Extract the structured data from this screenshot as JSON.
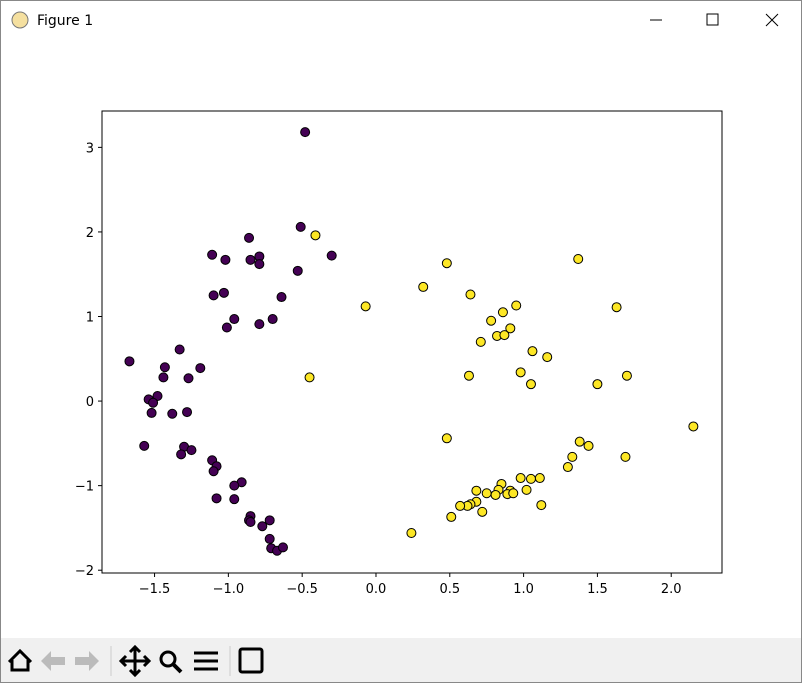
{
  "window_title": "Figure 1",
  "chart_data": {
    "type": "scatter",
    "xlim": [
      -1.856,
      2.344
    ],
    "ylim": [
      -2.033,
      3.43
    ],
    "xticks": [
      {
        "value": -1.5,
        "label": "−1.5"
      },
      {
        "value": -1.0,
        "label": "−1.0"
      },
      {
        "value": -0.5,
        "label": "−0.5"
      },
      {
        "value": 0,
        "label": "0.0"
      },
      0.5,
      {
        "value": 1.0,
        "label": "1.0"
      },
      1.5,
      {
        "value": 2.0,
        "label": "2.0"
      }
    ],
    "yticks": [
      {
        "value": -2,
        "label": "−2"
      },
      {
        "value": -1,
        "label": "−1"
      },
      0,
      1,
      2,
      3
    ],
    "grid": false,
    "series": [
      {
        "color": "#440154",
        "x": [
          -0.48,
          -0.51,
          -0.3,
          -0.86,
          -1.11,
          -1.02,
          -0.85,
          -0.79,
          -0.79,
          -0.53,
          -1.1,
          -1.03,
          -0.64,
          -0.96,
          -0.7,
          -1.01,
          -0.79,
          -1.67,
          -1.33,
          -1.43,
          -1.44,
          -1.19,
          -1.27,
          -1.48,
          -1.54,
          -1.51,
          -1.52,
          -1.38,
          -1.28,
          -1.57,
          -1.3,
          -1.25,
          -1.32,
          -1.11,
          -1.08,
          -1.1,
          -0.91,
          -0.96,
          -1.08,
          -0.96,
          -0.85,
          -0.86,
          -0.85,
          -0.72,
          -0.77,
          -0.72,
          -0.71,
          -0.67,
          -0.63
        ],
        "y": [
          3.18,
          2.06,
          1.72,
          1.93,
          1.73,
          1.67,
          1.67,
          1.71,
          1.62,
          1.54,
          1.25,
          1.28,
          1.23,
          0.97,
          0.97,
          0.87,
          0.91,
          0.47,
          0.61,
          0.4,
          0.28,
          0.39,
          0.27,
          0.06,
          0.02,
          -0.02,
          -0.14,
          -0.15,
          -0.13,
          -0.53,
          -0.54,
          -0.58,
          -0.63,
          -0.7,
          -0.77,
          -0.83,
          -0.96,
          -1.0,
          -1.15,
          -1.16,
          -1.36,
          -1.41,
          -1.43,
          -1.41,
          -1.48,
          -1.63,
          -1.74,
          -1.77,
          -1.73
        ]
      },
      {
        "color": "#fde725",
        "x": [
          -0.41,
          -0.07,
          0.48,
          0.32,
          0.64,
          1.37,
          1.63,
          0.95,
          0.86,
          0.78,
          0.91,
          0.82,
          0.87,
          0.71,
          1.06,
          1.16,
          -0.45,
          0.63,
          0.98,
          1.05,
          1.5,
          1.7,
          2.15,
          0.48,
          1.38,
          1.44,
          1.33,
          1.69,
          1.3,
          0.98,
          1.05,
          1.11,
          0.85,
          0.83,
          1.02,
          0.91,
          0.68,
          0.75,
          0.81,
          0.89,
          0.93,
          0.68,
          0.64,
          0.62,
          0.57,
          1.12,
          0.72,
          0.51,
          0.24
        ],
        "y": [
          1.96,
          1.12,
          1.63,
          1.35,
          1.26,
          1.68,
          1.11,
          1.13,
          1.05,
          0.95,
          0.86,
          0.77,
          0.78,
          0.7,
          0.59,
          0.52,
          0.28,
          0.3,
          0.34,
          0.2,
          0.2,
          0.3,
          -0.3,
          -0.44,
          -0.48,
          -0.53,
          -0.66,
          -0.66,
          -0.78,
          -0.91,
          -0.92,
          -0.91,
          -0.98,
          -1.05,
          -1.05,
          -1.06,
          -1.06,
          -1.09,
          -1.11,
          -1.1,
          -1.09,
          -1.19,
          -1.22,
          -1.24,
          -1.24,
          -1.23,
          -1.31,
          -1.37,
          -1.56
        ]
      }
    ]
  }
}
